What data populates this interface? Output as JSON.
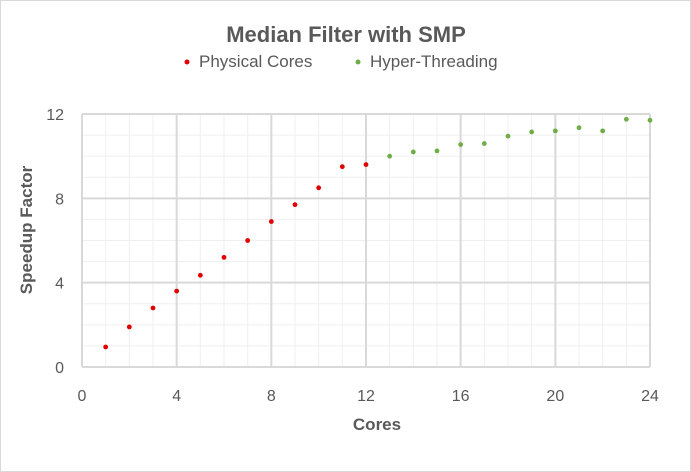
{
  "chart_data": {
    "type": "scatter",
    "title": "Median Filter with SMP",
    "xlabel": "Cores",
    "ylabel": "Speedup Factor",
    "xlim": [
      0,
      24
    ],
    "ylim": [
      0,
      12
    ],
    "x_major_ticks": [
      0,
      4,
      8,
      12,
      16,
      20,
      24
    ],
    "y_major_ticks": [
      0,
      4,
      8,
      12
    ],
    "x_minor_step": 1,
    "y_minor_step": 1,
    "grid": true,
    "legend_position": "top",
    "series": [
      {
        "name": "Physical Cores",
        "color": "#e00000",
        "x": [
          1,
          2,
          3,
          4,
          5,
          6,
          7,
          8,
          9,
          10,
          11,
          12
        ],
        "y": [
          0.95,
          1.9,
          2.8,
          3.6,
          4.35,
          5.2,
          6.0,
          6.9,
          7.7,
          8.5,
          9.5,
          9.6
        ]
      },
      {
        "name": "Hyper-Threading",
        "color": "#70ad47",
        "x": [
          13,
          14,
          15,
          16,
          17,
          18,
          19,
          20,
          21,
          22,
          23,
          24
        ],
        "y": [
          10.0,
          10.2,
          10.25,
          10.55,
          10.6,
          10.95,
          11.15,
          11.2,
          11.35,
          11.2,
          11.75,
          11.7
        ]
      }
    ]
  }
}
